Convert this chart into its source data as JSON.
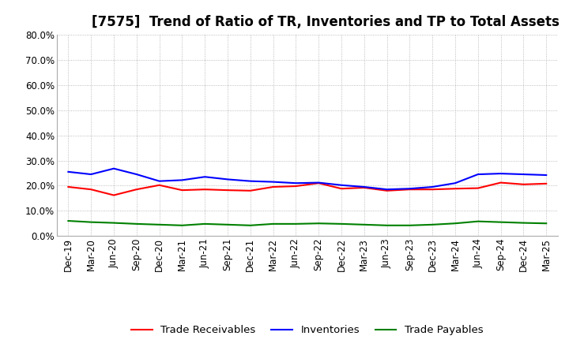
{
  "title": "[7575]  Trend of Ratio of TR, Inventories and TP to Total Assets",
  "x_labels": [
    "Dec-19",
    "Mar-20",
    "Jun-20",
    "Sep-20",
    "Dec-20",
    "Mar-21",
    "Jun-21",
    "Sep-21",
    "Dec-21",
    "Mar-22",
    "Jun-22",
    "Sep-22",
    "Dec-22",
    "Mar-23",
    "Jun-23",
    "Sep-23",
    "Dec-23",
    "Mar-24",
    "Jun-24",
    "Sep-24",
    "Dec-24",
    "Mar-25"
  ],
  "trade_receivables": [
    19.5,
    18.5,
    16.2,
    18.5,
    20.2,
    18.2,
    18.5,
    18.2,
    18.0,
    19.5,
    19.8,
    21.0,
    18.8,
    19.2,
    18.0,
    18.5,
    18.5,
    18.8,
    19.0,
    21.2,
    20.5,
    20.8
  ],
  "inventories": [
    25.5,
    24.5,
    26.8,
    24.5,
    21.8,
    22.2,
    23.5,
    22.5,
    21.8,
    21.5,
    21.0,
    21.2,
    20.2,
    19.5,
    18.5,
    18.8,
    19.5,
    21.0,
    24.5,
    24.8,
    24.5,
    24.2
  ],
  "trade_payables": [
    6.0,
    5.5,
    5.2,
    4.8,
    4.5,
    4.2,
    4.8,
    4.5,
    4.2,
    4.8,
    4.8,
    5.0,
    4.8,
    4.5,
    4.2,
    4.2,
    4.5,
    5.0,
    5.8,
    5.5,
    5.2,
    5.0
  ],
  "ylim": [
    0,
    80
  ],
  "yticks": [
    0,
    10,
    20,
    30,
    40,
    50,
    60,
    70,
    80
  ],
  "line_color_tr": "#FF0000",
  "line_color_inv": "#0000FF",
  "line_color_tp": "#008000",
  "background_color": "#FFFFFF",
  "grid_color": "#AAAAAA",
  "legend_tr": "Trade Receivables",
  "legend_inv": "Inventories",
  "legend_tp": "Trade Payables",
  "title_fontsize": 12,
  "tick_fontsize": 8.5,
  "legend_fontsize": 9.5
}
